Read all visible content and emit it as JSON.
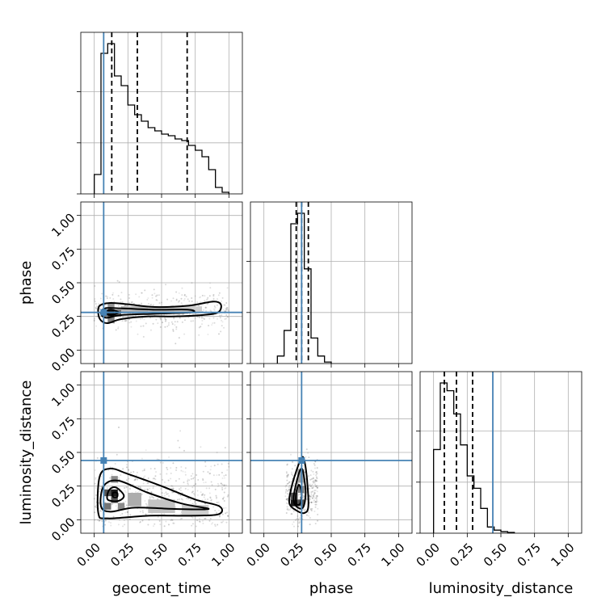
{
  "chart_data": {
    "type": "corner",
    "parameters": [
      "geocent_time",
      "phase",
      "luminosity_distance"
    ],
    "axis_labels": {
      "x": [
        "geocent_time",
        "phase",
        "luminosity_distance"
      ],
      "y": [
        "",
        "phase",
        "luminosity_distance"
      ]
    },
    "range": [
      -0.1,
      1.1
    ],
    "ticks": [
      0.0,
      0.25,
      0.5,
      0.75,
      1.0
    ],
    "tick_labels": [
      "0.00",
      "0.25",
      "0.50",
      "0.75",
      "1.00"
    ],
    "truths": {
      "geocent_time": 0.07,
      "phase": 0.28,
      "luminosity_distance": 0.44
    },
    "quantiles": {
      "geocent_time": [
        0.13,
        0.32,
        0.69
      ],
      "phase": [
        0.24,
        0.28,
        0.33
      ],
      "luminosity_distance": [
        0.08,
        0.17,
        0.29
      ]
    },
    "histograms": {
      "geocent_time": {
        "bin_start": 0.0,
        "bin_width": 0.05,
        "counts": [
          0.12,
          0.87,
          0.93,
          0.73,
          0.67,
          0.55,
          0.49,
          0.45,
          0.41,
          0.39,
          0.37,
          0.36,
          0.34,
          0.33,
          0.3,
          0.27,
          0.23,
          0.15,
          0.04,
          0.01
        ]
      },
      "phase": {
        "bin_start": 0.1,
        "bin_width": 0.05,
        "counts": [
          0.05,
          0.22,
          0.93,
          1.0,
          0.63,
          0.17,
          0.05,
          0.01
        ]
      },
      "luminosity_distance": {
        "bin_start": 0.0,
        "bin_width": 0.05,
        "counts": [
          0.54,
          0.97,
          0.92,
          0.77,
          0.57,
          0.37,
          0.29,
          0.16,
          0.04,
          0.02,
          0.01,
          0.005
        ]
      }
    },
    "pairs": [
      {
        "x": "geocent_time",
        "y": "phase",
        "contours": [
          [
            [
              0.03,
              0.27
            ],
            [
              0.05,
              0.22
            ],
            [
              0.1,
              0.2
            ],
            [
              0.2,
              0.23
            ],
            [
              0.4,
              0.25
            ],
            [
              0.6,
              0.25
            ],
            [
              0.8,
              0.26
            ],
            [
              0.92,
              0.28
            ],
            [
              0.94,
              0.34
            ],
            [
              0.88,
              0.36
            ],
            [
              0.7,
              0.33
            ],
            [
              0.45,
              0.32
            ],
            [
              0.25,
              0.34
            ],
            [
              0.12,
              0.35
            ],
            [
              0.04,
              0.33
            ]
          ],
          [
            [
              0.05,
              0.27
            ],
            [
              0.09,
              0.24
            ],
            [
              0.2,
              0.26
            ],
            [
              0.45,
              0.27
            ],
            [
              0.72,
              0.28
            ],
            [
              0.7,
              0.3
            ],
            [
              0.45,
              0.3
            ],
            [
              0.2,
              0.31
            ],
            [
              0.08,
              0.31
            ]
          ],
          [
            [
              0.08,
              0.28
            ],
            [
              0.12,
              0.26
            ],
            [
              0.18,
              0.28
            ],
            [
              0.12,
              0.3
            ]
          ]
        ],
        "density": [
          {
            "x": 0.125,
            "y": 0.275,
            "w": 0.05,
            "h": 0.05,
            "v": 0.95
          },
          {
            "x": 0.075,
            "y": 0.275,
            "w": 0.05,
            "h": 0.05,
            "v": 0.6
          },
          {
            "x": 0.175,
            "y": 0.275,
            "w": 0.05,
            "h": 0.05,
            "v": 0.6
          },
          {
            "x": 0.125,
            "y": 0.225,
            "w": 0.05,
            "h": 0.05,
            "v": 0.5
          },
          {
            "x": 0.125,
            "y": 0.325,
            "w": 0.05,
            "h": 0.05,
            "v": 0.4
          },
          {
            "x": 0.3,
            "y": 0.3,
            "w": 0.2,
            "h": 0.05,
            "v": 0.25
          },
          {
            "x": 0.5,
            "y": 0.3,
            "w": 0.2,
            "h": 0.05,
            "v": 0.18
          },
          {
            "x": 0.7,
            "y": 0.3,
            "w": 0.2,
            "h": 0.05,
            "v": 0.15
          }
        ],
        "scatter": {
          "x_range": [
            0.0,
            1.0
          ],
          "y_center": 0.3,
          "y_spread": 0.09,
          "count": 420
        }
      },
      {
        "x": "geocent_time",
        "y": "luminosity_distance",
        "contours": [
          [
            [
              0.03,
              0.05
            ],
            [
              0.1,
              0.01
            ],
            [
              0.4,
              0.03
            ],
            [
              0.7,
              0.03
            ],
            [
              0.92,
              0.04
            ],
            [
              0.93,
              0.1
            ],
            [
              0.75,
              0.15
            ],
            [
              0.5,
              0.25
            ],
            [
              0.25,
              0.34
            ],
            [
              0.12,
              0.38
            ],
            [
              0.04,
              0.32
            ]
          ],
          [
            [
              0.05,
              0.1
            ],
            [
              0.12,
              0.06
            ],
            [
              0.3,
              0.09
            ],
            [
              0.6,
              0.08
            ],
            [
              0.85,
              0.08
            ],
            [
              0.65,
              0.12
            ],
            [
              0.4,
              0.2
            ],
            [
              0.18,
              0.29
            ],
            [
              0.07,
              0.25
            ]
          ],
          [
            [
              0.1,
              0.15
            ],
            [
              0.18,
              0.14
            ],
            [
              0.22,
              0.18
            ],
            [
              0.16,
              0.24
            ],
            [
              0.11,
              0.22
            ]
          ],
          [
            [
              0.14,
              0.17
            ],
            [
              0.17,
              0.17
            ],
            [
              0.17,
              0.2
            ],
            [
              0.14,
              0.2
            ]
          ]
        ],
        "density": [
          {
            "x": 0.15,
            "y": 0.2,
            "w": 0.05,
            "h": 0.05,
            "v": 0.95
          },
          {
            "x": 0.1,
            "y": 0.2,
            "w": 0.05,
            "h": 0.05,
            "v": 0.7
          },
          {
            "x": 0.15,
            "y": 0.15,
            "w": 0.05,
            "h": 0.05,
            "v": 0.7
          },
          {
            "x": 0.1,
            "y": 0.1,
            "w": 0.05,
            "h": 0.05,
            "v": 0.55
          },
          {
            "x": 0.2,
            "y": 0.1,
            "w": 0.05,
            "h": 0.05,
            "v": 0.45
          },
          {
            "x": 0.15,
            "y": 0.3,
            "w": 0.05,
            "h": 0.05,
            "v": 0.45
          },
          {
            "x": 0.3,
            "y": 0.15,
            "w": 0.1,
            "h": 0.1,
            "v": 0.3
          },
          {
            "x": 0.5,
            "y": 0.1,
            "w": 0.2,
            "h": 0.1,
            "v": 0.2
          },
          {
            "x": 0.75,
            "y": 0.07,
            "w": 0.2,
            "h": 0.08,
            "v": 0.15
          }
        ],
        "scatter": {
          "x_range": [
            0.0,
            1.0
          ],
          "y_center": 0.18,
          "y_spread": 0.18,
          "count": 520
        }
      },
      {
        "x": "phase",
        "y": "luminosity_distance",
        "contours": [
          [
            [
              0.24,
              0.07
            ],
            [
              0.3,
              0.05
            ],
            [
              0.33,
              0.1
            ],
            [
              0.32,
              0.3
            ],
            [
              0.3,
              0.44
            ],
            [
              0.28,
              0.46
            ],
            [
              0.24,
              0.36
            ],
            [
              0.2,
              0.22
            ],
            [
              0.19,
              0.12
            ]
          ],
          [
            [
              0.24,
              0.1
            ],
            [
              0.29,
              0.09
            ],
            [
              0.31,
              0.2
            ],
            [
              0.29,
              0.36
            ],
            [
              0.27,
              0.37
            ],
            [
              0.24,
              0.27
            ],
            [
              0.22,
              0.16
            ]
          ],
          [
            [
              0.24,
              0.12
            ],
            [
              0.27,
              0.12
            ],
            [
              0.28,
              0.2
            ],
            [
              0.26,
              0.26
            ],
            [
              0.24,
              0.2
            ]
          ]
        ],
        "density": [
          {
            "x": 0.225,
            "y": 0.125,
            "w": 0.05,
            "h": 0.05,
            "v": 0.95
          },
          {
            "x": 0.275,
            "y": 0.125,
            "w": 0.05,
            "h": 0.05,
            "v": 0.7
          },
          {
            "x": 0.225,
            "y": 0.175,
            "w": 0.05,
            "h": 0.05,
            "v": 0.7
          },
          {
            "x": 0.275,
            "y": 0.225,
            "w": 0.05,
            "h": 0.05,
            "v": 0.5
          },
          {
            "x": 0.275,
            "y": 0.325,
            "w": 0.05,
            "h": 0.1,
            "v": 0.35
          }
        ],
        "scatter": {
          "x_range": [
            0.16,
            0.4
          ],
          "y_center": 0.2,
          "y_spread": 0.14,
          "count": 380
        }
      }
    ],
    "grid": true
  }
}
